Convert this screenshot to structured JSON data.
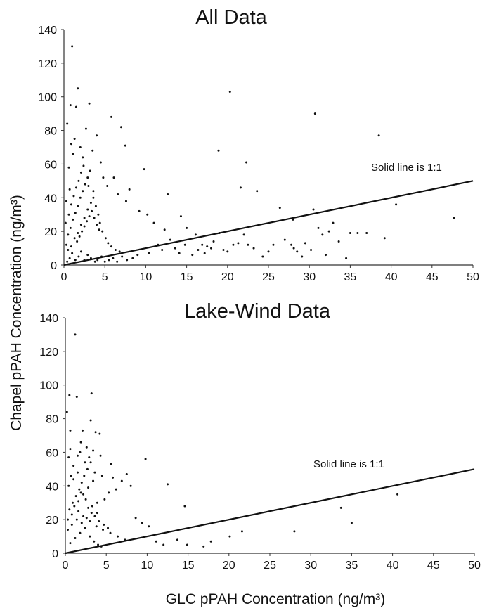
{
  "figure": {
    "ylabel": "Chapel pPAH Concentration (ng/m³)",
    "xlabel": "GLC pPAH Concentration (ng/m³)"
  },
  "chart_data": [
    {
      "type": "scatter",
      "title": "All Data",
      "xlabel": "GLC pPAH Concentration (ng/m³)",
      "ylabel": "Chapel pPAH Concentration (ng/m³)",
      "xlim": [
        0,
        50
      ],
      "ylim": [
        0,
        140
      ],
      "xticks": [
        "0",
        "5",
        "10",
        "15",
        "20",
        "25",
        "30",
        "35",
        "40",
        "45",
        "50"
      ],
      "yticks": [
        "0",
        "20",
        "40",
        "60",
        "80",
        "100",
        "120",
        "140"
      ],
      "grid": false,
      "marker_color": "#111111",
      "annotation": "Solid line is 1:1",
      "reference_line": {
        "x": [
          0,
          50
        ],
        "y": [
          0,
          50
        ]
      },
      "points": [
        [
          0.4,
          84
        ],
        [
          1.0,
          130
        ],
        [
          1.7,
          105
        ],
        [
          1.5,
          94
        ],
        [
          0.8,
          95
        ],
        [
          3.1,
          96
        ],
        [
          5.8,
          88
        ],
        [
          7.0,
          82
        ],
        [
          4.0,
          77
        ],
        [
          2.7,
          81
        ],
        [
          1.3,
          75
        ],
        [
          0.9,
          72
        ],
        [
          2.0,
          70
        ],
        [
          3.5,
          68
        ],
        [
          4.5,
          61
        ],
        [
          7.5,
          71
        ],
        [
          9.8,
          57
        ],
        [
          6.1,
          52
        ],
        [
          2.3,
          64
        ],
        [
          1.1,
          66
        ],
        [
          0.6,
          58
        ],
        [
          3.2,
          56
        ],
        [
          4.8,
          52
        ],
        [
          5.3,
          47
        ],
        [
          6.6,
          42
        ],
        [
          8.0,
          45
        ],
        [
          7.6,
          38
        ],
        [
          9.2,
          32
        ],
        [
          10.2,
          30
        ],
        [
          11.0,
          25
        ],
        [
          12.7,
          42
        ],
        [
          12.3,
          21
        ],
        [
          13.0,
          15
        ],
        [
          14.3,
          29
        ],
        [
          15.0,
          22
        ],
        [
          16.1,
          18
        ],
        [
          16.9,
          12
        ],
        [
          17.5,
          11
        ],
        [
          18.3,
          14
        ],
        [
          19.0,
          19
        ],
        [
          20.3,
          103
        ],
        [
          18.9,
          68
        ],
        [
          22.3,
          61
        ],
        [
          21.6,
          46
        ],
        [
          23.6,
          44
        ],
        [
          26.4,
          34
        ],
        [
          28.0,
          27
        ],
        [
          28.5,
          8
        ],
        [
          29.1,
          5
        ],
        [
          30.7,
          90
        ],
        [
          30.5,
          33
        ],
        [
          31.1,
          22
        ],
        [
          31.6,
          18
        ],
        [
          32.4,
          20
        ],
        [
          32.9,
          25
        ],
        [
          33.6,
          14
        ],
        [
          35.0,
          19
        ],
        [
          35.9,
          19
        ],
        [
          37.0,
          19
        ],
        [
          38.5,
          77
        ],
        [
          39.2,
          16
        ],
        [
          40.6,
          36
        ],
        [
          47.7,
          28
        ],
        [
          27.0,
          15
        ],
        [
          27.8,
          12
        ],
        [
          28.1,
          10
        ],
        [
          29.5,
          13
        ],
        [
          30.2,
          9
        ],
        [
          32.0,
          6
        ],
        [
          34.5,
          4
        ],
        [
          22.0,
          18
        ],
        [
          22.5,
          12
        ],
        [
          23.2,
          10
        ],
        [
          24.3,
          5
        ],
        [
          25.0,
          8
        ],
        [
          25.6,
          12
        ],
        [
          20.0,
          8
        ],
        [
          20.7,
          12
        ],
        [
          19.5,
          9
        ],
        [
          21.3,
          13
        ],
        [
          11.5,
          12
        ],
        [
          12.0,
          9
        ],
        [
          13.6,
          10
        ],
        [
          14.1,
          7
        ],
        [
          14.8,
          12
        ],
        [
          15.7,
          6
        ],
        [
          16.4,
          9
        ],
        [
          17.2,
          7
        ],
        [
          18.0,
          10
        ],
        [
          10.4,
          7
        ],
        [
          9.0,
          6
        ],
        [
          8.4,
          4
        ],
        [
          7.7,
          3
        ],
        [
          7.1,
          5
        ],
        [
          6.5,
          2
        ],
        [
          6.0,
          4
        ],
        [
          5.5,
          3
        ],
        [
          5.0,
          2
        ],
        [
          4.6,
          5
        ],
        [
          4.1,
          3
        ],
        [
          3.8,
          2
        ],
        [
          3.3,
          4
        ],
        [
          2.9,
          6
        ],
        [
          2.5,
          3
        ],
        [
          2.1,
          8
        ],
        [
          1.8,
          5
        ],
        [
          1.4,
          3
        ],
        [
          1.0,
          7
        ],
        [
          0.7,
          4
        ],
        [
          0.4,
          2
        ],
        [
          0.3,
          12
        ],
        [
          0.5,
          18
        ],
        [
          0.8,
          22
        ],
        [
          1.1,
          27
        ],
        [
          1.4,
          31
        ],
        [
          1.7,
          35
        ],
        [
          2.0,
          40
        ],
        [
          2.3,
          44
        ],
        [
          2.6,
          48
        ],
        [
          2.9,
          52
        ],
        [
          0.2,
          25
        ],
        [
          0.6,
          30
        ],
        [
          0.9,
          36
        ],
        [
          1.2,
          41
        ],
        [
          1.5,
          46
        ],
        [
          1.8,
          50
        ],
        [
          2.1,
          55
        ],
        [
          2.4,
          59
        ],
        [
          0.3,
          38
        ],
        [
          0.7,
          45
        ],
        [
          3.6,
          40
        ],
        [
          3.9,
          35
        ],
        [
          4.2,
          30
        ],
        [
          4.4,
          25
        ],
        [
          4.7,
          20
        ],
        [
          5.1,
          16
        ],
        [
          5.4,
          13
        ],
        [
          5.8,
          11
        ],
        [
          6.3,
          9
        ],
        [
          6.8,
          8
        ],
        [
          1.6,
          14
        ],
        [
          1.9,
          17
        ],
        [
          2.2,
          20
        ],
        [
          2.5,
          23
        ],
        [
          2.8,
          26
        ],
        [
          3.1,
          29
        ],
        [
          3.4,
          32
        ],
        [
          3.7,
          28
        ],
        [
          4.0,
          24
        ],
        [
          4.3,
          21
        ],
        [
          0.5,
          9
        ],
        [
          0.9,
          11
        ],
        [
          1.3,
          16
        ],
        [
          1.7,
          19
        ],
        [
          2.1,
          24
        ],
        [
          2.5,
          28
        ],
        [
          2.9,
          33
        ],
        [
          3.3,
          37
        ],
        [
          3.6,
          44
        ],
        [
          3.0,
          47
        ]
      ]
    },
    {
      "type": "scatter",
      "title": "Lake-Wind Data",
      "xlabel": "GLC pPAH Concentration (ng/m³)",
      "ylabel": "Chapel pPAH Concentration (ng/m³)",
      "xlim": [
        0,
        50
      ],
      "ylim": [
        0,
        140
      ],
      "xticks": [
        "0",
        "5",
        "10",
        "15",
        "20",
        "25",
        "30",
        "35",
        "40",
        "45",
        "50"
      ],
      "yticks": [
        "0",
        "20",
        "40",
        "60",
        "80",
        "100",
        "120",
        "140"
      ],
      "grid": false,
      "marker_color": "#111111",
      "annotation": "Solid line is 1:1",
      "reference_line": {
        "x": [
          0,
          50
        ],
        "y": [
          0,
          50
        ]
      },
      "points": [
        [
          1.2,
          130
        ],
        [
          3.2,
          95
        ],
        [
          0.5,
          94
        ],
        [
          1.4,
          93
        ],
        [
          0.2,
          84
        ],
        [
          3.1,
          79
        ],
        [
          2.1,
          73
        ],
        [
          0.6,
          73
        ],
        [
          4.2,
          71
        ],
        [
          3.7,
          72
        ],
        [
          1.9,
          66
        ],
        [
          2.6,
          63
        ],
        [
          3.4,
          61
        ],
        [
          1.5,
          58
        ],
        [
          0.4,
          57
        ],
        [
          2.4,
          54
        ],
        [
          5.6,
          53
        ],
        [
          9.8,
          56
        ],
        [
          3.6,
          48
        ],
        [
          4.5,
          46
        ],
        [
          1.0,
          44
        ],
        [
          5.8,
          45
        ],
        [
          7.5,
          47
        ],
        [
          6.9,
          43
        ],
        [
          8.0,
          40
        ],
        [
          12.5,
          41
        ],
        [
          6.2,
          38
        ],
        [
          5.3,
          36
        ],
        [
          4.8,
          32
        ],
        [
          3.9,
          30
        ],
        [
          2.8,
          27
        ],
        [
          1.6,
          25
        ],
        [
          0.8,
          23
        ],
        [
          0.3,
          20
        ],
        [
          2.2,
          22
        ],
        [
          3.0,
          19
        ],
        [
          3.8,
          16
        ],
        [
          4.6,
          14
        ],
        [
          5.5,
          12
        ],
        [
          6.4,
          10
        ],
        [
          7.3,
          8
        ],
        [
          8.6,
          21
        ],
        [
          9.4,
          18
        ],
        [
          10.2,
          16
        ],
        [
          11.1,
          7
        ],
        [
          12.0,
          5
        ],
        [
          14.6,
          28
        ],
        [
          13.7,
          8
        ],
        [
          14.9,
          5
        ],
        [
          16.9,
          4
        ],
        [
          17.8,
          7
        ],
        [
          20.1,
          10
        ],
        [
          21.6,
          13
        ],
        [
          28.0,
          13
        ],
        [
          33.7,
          27
        ],
        [
          35.0,
          18
        ],
        [
          40.6,
          35
        ],
        [
          0.6,
          6
        ],
        [
          1.2,
          9
        ],
        [
          1.8,
          12
        ],
        [
          2.4,
          15
        ],
        [
          3.0,
          10
        ],
        [
          3.5,
          7
        ],
        [
          4.0,
          5
        ],
        [
          4.4,
          4
        ],
        [
          0.9,
          30
        ],
        [
          1.3,
          34
        ],
        [
          1.7,
          38
        ],
        [
          2.0,
          42
        ],
        [
          2.3,
          46
        ],
        [
          2.7,
          50
        ],
        [
          3.1,
          54
        ],
        [
          0.4,
          40
        ],
        [
          0.7,
          46
        ],
        [
          1.0,
          52
        ],
        [
          1.5,
          48
        ],
        [
          1.9,
          36
        ],
        [
          2.5,
          32
        ],
        [
          3.3,
          28
        ],
        [
          3.9,
          24
        ],
        [
          0.3,
          14
        ],
        [
          0.8,
          17
        ],
        [
          1.4,
          20
        ],
        [
          2.0,
          18
        ],
        [
          2.6,
          21
        ],
        [
          3.2,
          24
        ],
        [
          3.6,
          22
        ],
        [
          4.1,
          19
        ],
        [
          4.7,
          17
        ],
        [
          5.2,
          15
        ],
        [
          0.5,
          26
        ],
        [
          1.1,
          28
        ],
        [
          1.6,
          31
        ],
        [
          2.2,
          35
        ],
        [
          2.8,
          39
        ],
        [
          3.4,
          43
        ],
        [
          0.6,
          62
        ],
        [
          1.8,
          60
        ],
        [
          2.9,
          57
        ],
        [
          4.3,
          58
        ]
      ]
    }
  ]
}
